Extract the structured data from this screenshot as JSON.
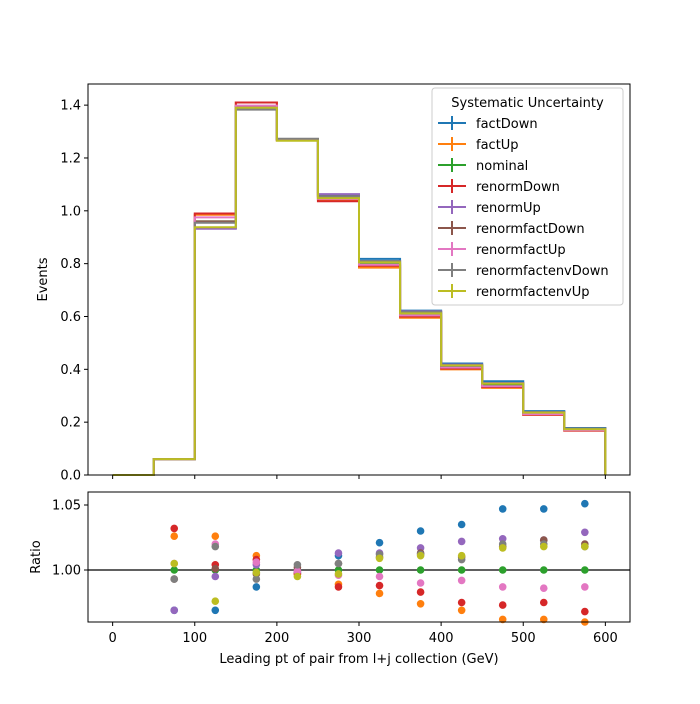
{
  "chart_data": [
    {
      "type": "line",
      "drawstyle": "step",
      "xlabel": "",
      "ylabel": "Events",
      "xlim": [
        -30,
        630
      ],
      "ylim": [
        0,
        1.48
      ],
      "yticks": [
        0.0,
        0.2,
        0.4,
        0.6,
        0.8,
        1.0,
        1.2,
        1.4
      ],
      "ytick_labels": [
        "0.0",
        "0.2",
        "0.4",
        "0.6",
        "0.8",
        "1.0",
        "1.2",
        "1.4"
      ],
      "bin_edges": [
        0,
        50,
        100,
        150,
        200,
        250,
        300,
        350,
        400,
        450,
        500,
        550,
        600
      ],
      "legend": {
        "title": "Systematic Uncertainty",
        "position": "top-right"
      },
      "series": [
        {
          "name": "factDown",
          "color": "#1f77b4",
          "values": [
            0.0,
            0.06,
            0.935,
            1.385,
            1.27,
            1.06,
            0.818,
            0.622,
            0.422,
            0.355,
            0.242,
            0.178
          ]
        },
        {
          "name": "factUp",
          "color": "#ff7f0e",
          "values": [
            0.0,
            0.06,
            0.985,
            1.41,
            1.267,
            1.04,
            0.785,
            0.595,
            0.4,
            0.33,
            0.227,
            0.168
          ]
        },
        {
          "name": "nominal",
          "color": "#2ca02c",
          "values": [
            0.0,
            0.06,
            0.96,
            1.395,
            1.27,
            1.05,
            0.8,
            0.61,
            0.41,
            0.34,
            0.233,
            0.172
          ]
        },
        {
          "name": "renormDown",
          "color": "#d62728",
          "values": [
            0.0,
            0.06,
            0.99,
            1.41,
            1.266,
            1.036,
            0.792,
            0.6,
            0.403,
            0.333,
            0.228,
            0.168
          ]
        },
        {
          "name": "renormUp",
          "color": "#9467bd",
          "values": [
            0.0,
            0.06,
            0.932,
            1.392,
            1.269,
            1.063,
            0.81,
            0.62,
            0.418,
            0.348,
            0.238,
            0.176
          ]
        },
        {
          "name": "renormfactDown",
          "color": "#8c564b",
          "values": [
            0.0,
            0.06,
            0.96,
            1.393,
            1.272,
            1.055,
            0.808,
            0.617,
            0.415,
            0.346,
            0.237,
            0.175
          ]
        },
        {
          "name": "renormfactUp",
          "color": "#e377c2",
          "values": [
            0.0,
            0.06,
            0.975,
            1.398,
            1.268,
            1.045,
            0.796,
            0.604,
            0.407,
            0.336,
            0.23,
            0.17
          ]
        },
        {
          "name": "renormfactenvDown",
          "color": "#7f7f7f",
          "values": [
            0.0,
            0.06,
            0.955,
            1.383,
            1.273,
            1.055,
            0.81,
            0.618,
            0.413,
            0.347,
            0.238,
            0.176
          ]
        },
        {
          "name": "renormfactenvUp",
          "color": "#bcbd22",
          "values": [
            0.0,
            0.06,
            0.938,
            1.39,
            1.265,
            1.048,
            0.805,
            0.612,
            0.415,
            0.346,
            0.236,
            0.173
          ]
        }
      ]
    },
    {
      "type": "scatter",
      "xlabel": "Leading pt of pair from l+j collection (GeV)",
      "ylabel": "Ratio",
      "xlim": [
        -30,
        630
      ],
      "ylim": [
        0.96,
        1.06
      ],
      "xticks": [
        0,
        100,
        200,
        300,
        400,
        500,
        600
      ],
      "xtick_labels": [
        "0",
        "100",
        "200",
        "300",
        "400",
        "500",
        "600"
      ],
      "yticks": [
        1.0,
        1.05
      ],
      "ytick_labels": [
        "1.00",
        "1.05"
      ],
      "reference_line": 1.0,
      "x": [
        75,
        125,
        175,
        225,
        275,
        325,
        375,
        425,
        475,
        525,
        575
      ],
      "series": [
        {
          "name": "factDown",
          "color": "#1f77b4",
          "values": [
            0.969,
            0.969,
            0.987,
            0.998,
            1.011,
            1.021,
            1.03,
            1.035,
            1.047,
            1.047,
            1.051
          ]
        },
        {
          "name": "factUp",
          "color": "#ff7f0e",
          "values": [
            1.026,
            1.026,
            1.011,
            0.997,
            0.989,
            0.982,
            0.974,
            0.969,
            0.962,
            0.962,
            0.96
          ]
        },
        {
          "name": "nominal",
          "color": "#2ca02c",
          "values": [
            1.0,
            1.0,
            1.0,
            1.0,
            1.0,
            1.0,
            1.0,
            1.0,
            1.0,
            1.0,
            1.0
          ]
        },
        {
          "name": "renormDown",
          "color": "#d62728",
          "values": [
            1.032,
            1.004,
            1.008,
            0.997,
            0.987,
            0.988,
            0.983,
            0.975,
            0.973,
            0.975,
            0.968
          ]
        },
        {
          "name": "renormUp",
          "color": "#9467bd",
          "values": [
            0.969,
            0.995,
            1.004,
            0.999,
            1.013,
            1.013,
            1.017,
            1.022,
            1.024,
            1.023,
            1.029
          ]
        },
        {
          "name": "renormfactDown",
          "color": "#8c564b",
          "values": [
            0.993,
            1.001,
            0.997,
            1.002,
            1.005,
            1.01,
            1.013,
            1.01,
            1.018,
            1.023,
            1.02
          ]
        },
        {
          "name": "renormfactUp",
          "color": "#e377c2",
          "values": [
            1.005,
            1.02,
            1.006,
            0.999,
            0.996,
            0.995,
            0.99,
            0.992,
            0.987,
            0.986,
            0.987
          ]
        },
        {
          "name": "renormfactenvDown",
          "color": "#7f7f7f",
          "values": [
            0.993,
            1.018,
            0.993,
            1.004,
            1.005,
            1.012,
            1.012,
            1.008,
            1.02,
            1.02,
            1.018
          ]
        },
        {
          "name": "renormfactenvUp",
          "color": "#bcbd22",
          "values": [
            1.005,
            0.976,
            0.998,
            0.995,
            0.997,
            1.009,
            1.011,
            1.011,
            1.017,
            1.018,
            1.018
          ]
        }
      ]
    }
  ]
}
